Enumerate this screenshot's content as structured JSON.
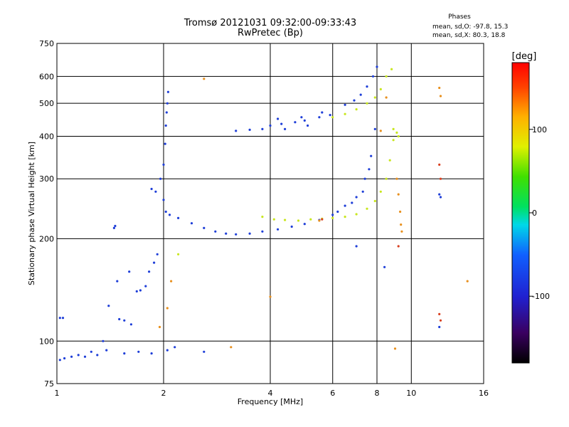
{
  "header": {
    "title": "Tromsø 20121031 09:32:00-09:33:43",
    "subtitle": "RwPretec (Bp)",
    "stats_heading": "Phases",
    "stats_o": "mean, sd,O: -97.8, 15.3",
    "stats_x": "mean, sd,X:  80.3, 18.8"
  },
  "chart_data": {
    "type": "scatter",
    "title": "Tromsø 20121031 09:32:00-09:33:43",
    "subtitle": "RwPretec (Bp)",
    "xlabel": "Frequency [MHz]",
    "ylabel": "Stationary phase Virtual Height [km]",
    "x_scale": "log",
    "y_scale": "log",
    "xlim": [
      1,
      16
    ],
    "ylim": [
      75,
      750
    ],
    "x_ticks": [
      1,
      2,
      4,
      6,
      8,
      10,
      16
    ],
    "x_tick_labels": [
      "1",
      "2",
      "4",
      "6",
      "8",
      "10",
      "16"
    ],
    "y_ticks": [
      75,
      100,
      200,
      300,
      400,
      500,
      600,
      750
    ],
    "y_tick_labels": [
      "75",
      "100",
      "200",
      "300",
      "400",
      "500",
      "600",
      "750"
    ],
    "grid": true,
    "colorbar": {
      "label": "[deg]",
      "min": -180,
      "max": 180,
      "ticks": [
        100,
        0,
        -100
      ],
      "tick_labels": [
        "100",
        "0",
        "-100"
      ]
    },
    "phase_colors": {
      "o_mode": "#1f3fd8",
      "x_mode": "#c8e61e",
      "scatter_orange": "#e8901e",
      "scatter_red": "#d84020"
    },
    "series": [
      {
        "mode": "O",
        "phase": -100,
        "points": [
          [
            1.02,
            88
          ],
          [
            1.05,
            89
          ],
          [
            1.1,
            90
          ],
          [
            1.15,
            91
          ],
          [
            1.2,
            90
          ],
          [
            1.25,
            93
          ],
          [
            1.3,
            91
          ],
          [
            1.38,
            94
          ],
          [
            1.02,
            117
          ],
          [
            1.04,
            117
          ],
          [
            1.35,
            100
          ],
          [
            1.4,
            127
          ],
          [
            1.48,
            150
          ],
          [
            1.5,
            116
          ],
          [
            1.55,
            115
          ],
          [
            1.6,
            160
          ],
          [
            1.62,
            112
          ],
          [
            1.68,
            140
          ],
          [
            1.72,
            141
          ],
          [
            1.78,
            145
          ],
          [
            1.82,
            160
          ],
          [
            1.88,
            170
          ],
          [
            1.92,
            180
          ],
          [
            1.55,
            92
          ],
          [
            1.7,
            93
          ],
          [
            1.85,
            92
          ],
          [
            2.05,
            94
          ],
          [
            2.15,
            96
          ],
          [
            2.6,
            93
          ],
          [
            1.85,
            280
          ],
          [
            1.9,
            275
          ],
          [
            1.96,
            300
          ],
          [
            2.0,
            330
          ],
          [
            2.02,
            380
          ],
          [
            2.03,
            430
          ],
          [
            2.04,
            470
          ],
          [
            2.05,
            500
          ],
          [
            2.06,
            540
          ],
          [
            2.0,
            260
          ],
          [
            2.03,
            240
          ],
          [
            2.08,
            235
          ],
          [
            2.2,
            230
          ],
          [
            2.4,
            222
          ],
          [
            2.6,
            215
          ],
          [
            2.8,
            210
          ],
          [
            3.0,
            207
          ],
          [
            3.2,
            206
          ],
          [
            3.5,
            207
          ],
          [
            3.8,
            210
          ],
          [
            4.2,
            213
          ],
          [
            4.6,
            217
          ],
          [
            5.0,
            221
          ],
          [
            5.5,
            227
          ],
          [
            6.0,
            235
          ],
          [
            6.5,
            250
          ],
          [
            7.0,
            265
          ],
          [
            7.4,
            300
          ],
          [
            7.7,
            350
          ],
          [
            7.9,
            420
          ],
          [
            6.2,
            240
          ],
          [
            6.8,
            255
          ],
          [
            7.3,
            275
          ],
          [
            7.6,
            320
          ],
          [
            3.2,
            415
          ],
          [
            3.5,
            418
          ],
          [
            3.8,
            420
          ],
          [
            4.0,
            430
          ],
          [
            4.3,
            435
          ],
          [
            4.7,
            440
          ],
          [
            5.0,
            445
          ],
          [
            5.5,
            455
          ],
          [
            5.9,
            462
          ],
          [
            4.2,
            450
          ],
          [
            4.9,
            455
          ],
          [
            5.6,
            470
          ],
          [
            4.4,
            420
          ],
          [
            5.1,
            430
          ],
          [
            6.5,
            495
          ],
          [
            6.9,
            510
          ],
          [
            7.2,
            530
          ],
          [
            7.5,
            560
          ],
          [
            7.8,
            600
          ],
          [
            8.0,
            640
          ],
          [
            1.45,
            215
          ],
          [
            1.46,
            218
          ],
          [
            7.0,
            190
          ],
          [
            8.4,
            165
          ],
          [
            12.0,
            110
          ],
          [
            12.0,
            270
          ],
          [
            12.1,
            265
          ]
        ]
      },
      {
        "mode": "X",
        "phase": 80,
        "points": [
          [
            3.8,
            232
          ],
          [
            4.1,
            228
          ],
          [
            4.4,
            227
          ],
          [
            4.8,
            226
          ],
          [
            5.2,
            228
          ],
          [
            5.6,
            229
          ],
          [
            6.0,
            230
          ],
          [
            6.5,
            232
          ],
          [
            7.0,
            236
          ],
          [
            7.5,
            245
          ],
          [
            7.9,
            258
          ],
          [
            8.2,
            275
          ],
          [
            8.5,
            300
          ],
          [
            8.7,
            340
          ],
          [
            8.9,
            390
          ],
          [
            9.1,
            410
          ],
          [
            6.0,
            455
          ],
          [
            6.5,
            465
          ],
          [
            7.0,
            480
          ],
          [
            7.5,
            500
          ],
          [
            7.9,
            520
          ],
          [
            8.2,
            550
          ],
          [
            8.5,
            600
          ],
          [
            8.8,
            630
          ],
          [
            8.9,
            420
          ],
          [
            9.2,
            400
          ],
          [
            2.2,
            180
          ]
        ]
      },
      {
        "mode": "scatter",
        "phase": 150,
        "points": [
          [
            2.6,
            590
          ],
          [
            4.0,
            135
          ],
          [
            3.1,
            96
          ],
          [
            9.0,
            95
          ],
          [
            9.1,
            300
          ],
          [
            9.2,
            270
          ],
          [
            9.3,
            240
          ],
          [
            9.35,
            220
          ],
          [
            9.4,
            210
          ],
          [
            8.2,
            415
          ],
          [
            8.5,
            520
          ],
          [
            12.0,
            555
          ],
          [
            12.1,
            525
          ],
          [
            14.4,
            150
          ],
          [
            5.5,
            226
          ],
          [
            2.05,
            125
          ],
          [
            2.1,
            150
          ],
          [
            1.95,
            110
          ]
        ]
      },
      {
        "mode": "scatter",
        "phase": 170,
        "points": [
          [
            12.0,
            330
          ],
          [
            12.1,
            300
          ],
          [
            9.2,
            190
          ],
          [
            5.6,
            228
          ],
          [
            12.1,
            115
          ],
          [
            12.0,
            120
          ]
        ]
      }
    ]
  }
}
